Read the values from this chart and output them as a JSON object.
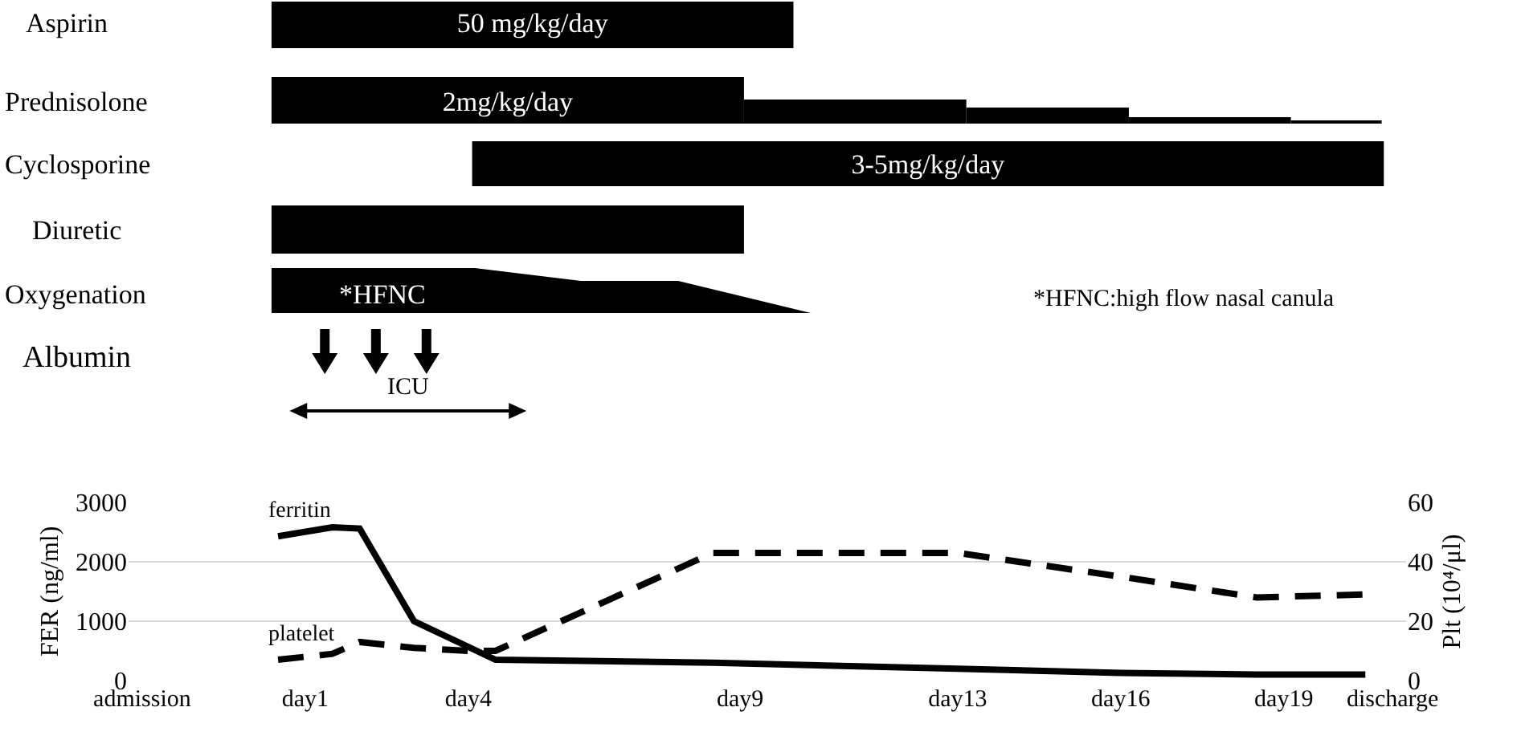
{
  "chart_data": {
    "type": "line",
    "categories": [
      "admission",
      null,
      null,
      null,
      null,
      null,
      "day1",
      null,
      null,
      null,
      null,
      null,
      "day4",
      null,
      null,
      null,
      null,
      null,
      null,
      null,
      null,
      null,
      "day9",
      null,
      null,
      null,
      null,
      null,
      null,
      null,
      "day13",
      null,
      null,
      null,
      null,
      null,
      "day16",
      null,
      null,
      null,
      null,
      null,
      "day19",
      null,
      null,
      null,
      "discharge"
    ],
    "series": [
      {
        "name": "ferritin",
        "color": "#000000",
        "line_style": "solid",
        "axis": "y",
        "values": [
          null,
          null,
          null,
          null,
          null,
          2430,
          null,
          2580,
          2560,
          null,
          1000,
          null,
          null,
          350,
          null,
          null,
          null,
          null,
          null,
          null,
          null,
          300,
          null,
          null,
          null,
          null,
          null,
          null,
          null,
          null,
          200,
          null,
          null,
          null,
          null,
          null,
          130,
          null,
          null,
          null,
          null,
          100,
          null,
          null,
          null,
          100,
          null
        ]
      },
      {
        "name": "platelet",
        "color": "#000000",
        "line_style": "dashed",
        "axis": "y2",
        "values": [
          null,
          null,
          null,
          null,
          null,
          7,
          null,
          9,
          13,
          null,
          11,
          null,
          10,
          10,
          null,
          null,
          null,
          null,
          null,
          null,
          null,
          43,
          null,
          null,
          null,
          null,
          null,
          null,
          null,
          null,
          43,
          null,
          null,
          null,
          null,
          null,
          35,
          null,
          null,
          null,
          null,
          28,
          null,
          null,
          null,
          29,
          null
        ]
      }
    ],
    "ylim": [
      0,
      3000
    ],
    "yticks": [
      0,
      1000,
      2000,
      3000
    ],
    "y2lim": [
      0,
      60
    ],
    "y2ticks": [
      0,
      20,
      40,
      60
    ],
    "ylabel": "FER (ng/ml)",
    "y2label": "Plt (10⁴/μl)",
    "grid": "y",
    "legend": false,
    "annotations": [
      "Aspirin",
      "50 mg/kg/day",
      "Prednisolone",
      "2mg/kg/day",
      "Cyclosporine",
      "3-5mg/kg/day",
      "Diuretic",
      "Oxygenation",
      "*HFNC",
      "*HFNC:high flow nasal canula",
      "Albumin",
      "ICU"
    ]
  }
}
